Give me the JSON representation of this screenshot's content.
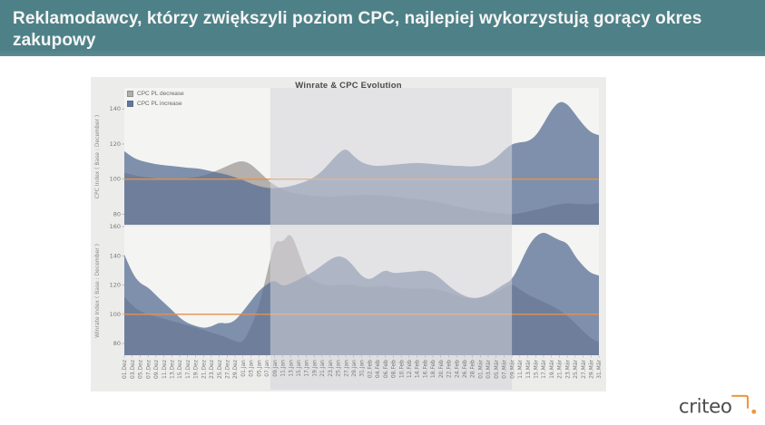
{
  "header": {
    "title": "Reklamodawcy, którzy zwiększyli poziom CPC, najlepiej wykorzystują gorący okres zakupowy",
    "background": "#4e8187",
    "text_color": "#f6f6f6"
  },
  "logo": {
    "text": "criteo",
    "text_color": "#4c4c4c",
    "accent_color": "#f0933c"
  },
  "chart_data": {
    "type": "area",
    "title": "Winrate & CPC Evolution",
    "legend_position": "top-left",
    "grid": false,
    "legend": [
      {
        "label": "CPC PL decrease",
        "swatch": "#b1aeab",
        "fill": "rgba(157,153,149,0.75)"
      },
      {
        "label": "CPC PL increase",
        "swatch": "#5f789f",
        "fill": "rgba(88,111,150,0.75)"
      }
    ],
    "reference_line": {
      "value": 100,
      "color": "#e8914a"
    },
    "highlight_band": {
      "from": "07.Jan",
      "to": "09.Mär",
      "color": "rgba(213,213,218,0.55)"
    },
    "categories": [
      "01.Dez",
      "03.Dez",
      "05.Dez",
      "07.Dez",
      "09.Dez",
      "11.Dez",
      "13.Dez",
      "15.Dez",
      "17.Dez",
      "19.Dez",
      "21.Dez",
      "23.Dez",
      "25.Dez",
      "27.Dez",
      "29.Dez",
      "01.Jan",
      "03.Jan",
      "05.Jan",
      "07.Jan",
      "09.Jan",
      "11.Jan",
      "13.Jan",
      "15.Jan",
      "17.Jan",
      "19.Jan",
      "21.Jan",
      "23.Jan",
      "25.Jan",
      "27.Jan",
      "29.Jan",
      "31.Jan",
      "02.Feb",
      "04.Feb",
      "06.Feb",
      "08.Feb",
      "10.Feb",
      "12.Feb",
      "14.Feb",
      "16.Feb",
      "18.Feb",
      "20.Feb",
      "22.Feb",
      "24.Feb",
      "26.Feb",
      "28.Feb",
      "01.Mär",
      "03.Mär",
      "05.Mär",
      "07.Mär",
      "09.Mär",
      "11.Mär",
      "13.Mär",
      "15.Mär",
      "17.Mär",
      "19.Mär",
      "21.Mär",
      "23.Mär",
      "25.Mär",
      "27.Mär",
      "29.Mär",
      "31.Mär"
    ],
    "panels": [
      {
        "name": "cpc",
        "ylabel": "CPC Index ( Base : December )",
        "ylim": [
          74,
          152
        ],
        "yticks": [
          80,
          100,
          120,
          140
        ],
        "series": [
          {
            "name": "CPC PL decrease",
            "values": [
              103.5,
              102.5,
              101.5,
              101,
              100.5,
              100,
              100,
              100,
              100.5,
              101,
              102,
              103.5,
              105.5,
              107.5,
              109.5,
              110.5,
              108.5,
              104.5,
              100,
              96.5,
              94,
              92.5,
              91.5,
              91,
              90.5,
              90.2,
              90,
              90.2,
              90.5,
              90.8,
              91,
              91,
              90.8,
              90.5,
              90,
              89.5,
              89,
              88.5,
              88,
              87.5,
              86.5,
              85.5,
              84.5,
              83.5,
              82.5,
              82,
              81.3,
              80.8,
              80.3,
              80,
              80.5,
              81.5,
              82.5,
              83.5,
              84.8,
              85.8,
              86.3,
              86,
              85.8,
              85.5,
              86.5
            ]
          },
          {
            "name": "CPC PL increase",
            "values": [
              116,
              112.5,
              110.5,
              109.5,
              108.5,
              108,
              107.5,
              107,
              106.5,
              106.2,
              105.5,
              104.5,
              103.5,
              102.5,
              101,
              99.5,
              97.5,
              96,
              95,
              94.8,
              95.2,
              96,
              97.2,
              98.8,
              101,
              104.5,
              109.5,
              114.5,
              117.8,
              113,
              109.5,
              108,
              107.5,
              107.8,
              108.2,
              108.6,
              109,
              109.3,
              109,
              108.6,
              108.2,
              107.9,
              107.6,
              107.4,
              107.2,
              107.6,
              109,
              112,
              116.5,
              120,
              121,
              121.4,
              124.5,
              131.5,
              139.5,
              144.5,
              143,
              137,
              131,
              126.5,
              125
            ]
          }
        ]
      },
      {
        "name": "winrate",
        "ylabel": "Winrate Index ( Base : December )",
        "ylim": [
          72,
          160
        ],
        "yticks": [
          80,
          100,
          120,
          140,
          160
        ],
        "series": [
          {
            "name": "CPC PL decrease",
            "values": [
              112,
              106,
              102,
              100,
              98.5,
              97,
              95.5,
              94,
              92.5,
              91,
              89.5,
              87.5,
              86,
              84,
              81.5,
              80.5,
              91,
              105,
              127,
              151,
              149,
              156.5,
              143,
              127,
              122.5,
              120.5,
              119.5,
              120,
              120.5,
              120,
              119,
              118.5,
              119,
              119.5,
              118.5,
              118,
              117.5,
              117.5,
              118,
              117.5,
              116.5,
              115,
              113,
              111.5,
              110.5,
              111,
              112.5,
              115,
              118,
              121,
              117,
              113.5,
              111,
              108.5,
              106,
              103,
              99,
              94,
              88.5,
              83.5,
              81
            ]
          },
          {
            "name": "CPC PL increase",
            "values": [
              141,
              128,
              121,
              118.5,
              113,
              108,
              103,
              97.5,
              94,
              92,
              90.5,
              91.5,
              94.5,
              93.5,
              95.5,
              102,
              109,
              116,
              120.5,
              123.5,
              119,
              121,
              123.5,
              126.5,
              129.5,
              133.5,
              137.5,
              140,
              138.5,
              133,
              126,
              123.5,
              127,
              130.5,
              128,
              128.5,
              129,
              129.5,
              130,
              128.5,
              124.5,
              119.5,
              115.5,
              112.5,
              111,
              111.5,
              113.5,
              117,
              120.5,
              123.5,
              134,
              146,
              153.5,
              156.5,
              153.5,
              150.5,
              149,
              139.5,
              133,
              128,
              126.5
            ]
          }
        ]
      }
    ]
  }
}
